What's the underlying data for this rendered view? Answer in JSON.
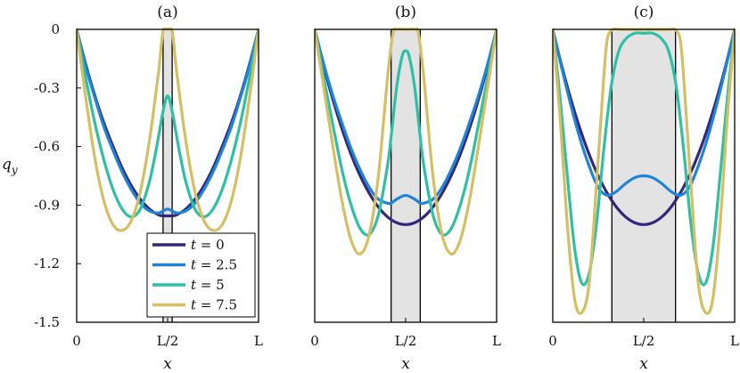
{
  "chart_data": {
    "type": "line",
    "ylabel": "q_y",
    "ylabel_main": "q",
    "ylabel_sub": "y",
    "xlabel": "x",
    "ylim": [
      -1.5,
      0
    ],
    "xlim": [
      0,
      1
    ],
    "yticks": [
      0,
      -0.3,
      -0.6,
      -0.9,
      -1.2,
      -1.5
    ],
    "ytick_labels": [
      "0",
      "-0.3",
      "-0.6",
      "-0.9",
      "-1.2",
      "-1.5"
    ],
    "xticks": [
      0,
      0.5,
      1
    ],
    "xtick_labels": [
      "0",
      "L/2",
      "L"
    ],
    "legend": {
      "location": "lower-right of panel (a)",
      "entries": [
        {
          "label": "t = 0",
          "var": "t",
          "eq": " = 0",
          "color": "#33277a"
        },
        {
          "label": "t = 2.5",
          "var": "t",
          "eq": " = 2.5",
          "color": "#1f84d6"
        },
        {
          "label": "t = 5",
          "var": "t",
          "eq": " = 5",
          "color": "#2ebfa5"
        },
        {
          "label": "t = 7.5",
          "var": "t",
          "eq": " = 7.5",
          "color": "#d6be62"
        }
      ]
    },
    "panels": [
      {
        "title": "(a)",
        "shaded_region": [
          0.475,
          0.525
        ],
        "series": [
          {
            "name": "t = 0",
            "color": "#33277a",
            "x": [
              0,
              0.05,
              0.1,
              0.15,
              0.2,
              0.25,
              0.3,
              0.35,
              0.4,
              0.45,
              0.475,
              0.5,
              0.525,
              0.55,
              0.6,
              0.65,
              0.7,
              0.75,
              0.8,
              0.85,
              0.9,
              0.95,
              1
            ],
            "y": [
              0,
              -0.18,
              -0.34,
              -0.48,
              -0.6,
              -0.71,
              -0.8,
              -0.87,
              -0.92,
              -0.95,
              -0.955,
              -0.955,
              -0.955,
              -0.95,
              -0.92,
              -0.87,
              -0.8,
              -0.71,
              -0.6,
              -0.48,
              -0.34,
              -0.18,
              0
            ]
          },
          {
            "name": "t = 2.5",
            "color": "#1f84d6",
            "x": [
              0,
              0.05,
              0.1,
              0.15,
              0.2,
              0.25,
              0.3,
              0.35,
              0.4,
              0.45,
              0.475,
              0.5,
              0.525,
              0.55,
              0.6,
              0.65,
              0.7,
              0.75,
              0.8,
              0.85,
              0.9,
              0.95,
              1
            ],
            "y": [
              0,
              -0.19,
              -0.35,
              -0.5,
              -0.62,
              -0.73,
              -0.82,
              -0.89,
              -0.93,
              -0.94,
              -0.93,
              -0.92,
              -0.93,
              -0.94,
              -0.93,
              -0.89,
              -0.82,
              -0.73,
              -0.62,
              -0.5,
              -0.35,
              -0.19,
              0
            ]
          },
          {
            "name": "t = 5",
            "color": "#2ebfa5",
            "x": [
              0,
              0.05,
              0.1,
              0.15,
              0.2,
              0.25,
              0.3,
              0.35,
              0.4,
              0.43,
              0.45,
              0.475,
              0.5,
              0.525,
              0.55,
              0.57,
              0.6,
              0.65,
              0.7,
              0.75,
              0.8,
              0.85,
              0.9,
              0.95,
              1
            ],
            "y": [
              0,
              -0.25,
              -0.48,
              -0.67,
              -0.82,
              -0.92,
              -0.96,
              -0.92,
              -0.78,
              -0.65,
              -0.55,
              -0.42,
              -0.34,
              -0.42,
              -0.55,
              -0.65,
              -0.78,
              -0.92,
              -0.96,
              -0.92,
              -0.82,
              -0.67,
              -0.48,
              -0.25,
              0
            ]
          },
          {
            "name": "t = 7.5",
            "color": "#d6be62",
            "x": [
              0,
              0.05,
              0.1,
              0.15,
              0.2,
              0.25,
              0.3,
              0.35,
              0.4,
              0.45,
              0.475,
              0.5,
              0.525,
              0.55,
              0.6,
              0.65,
              0.7,
              0.75,
              0.8,
              0.85,
              0.9,
              0.95,
              1
            ],
            "y": [
              0,
              -0.35,
              -0.66,
              -0.88,
              -1.0,
              -1.03,
              -0.98,
              -0.83,
              -0.57,
              -0.22,
              -0.01,
              0,
              -0.01,
              -0.22,
              -0.57,
              -0.83,
              -0.98,
              -1.03,
              -1.0,
              -0.88,
              -0.66,
              -0.35,
              0
            ]
          }
        ]
      },
      {
        "title": "(b)",
        "shaded_region": [
          0.42,
          0.58
        ],
        "series": [
          {
            "name": "t = 0",
            "color": "#33277a",
            "x": [
              0,
              0.05,
              0.1,
              0.15,
              0.2,
              0.25,
              0.3,
              0.35,
              0.4,
              0.45,
              0.5,
              0.55,
              0.6,
              0.65,
              0.7,
              0.75,
              0.8,
              0.85,
              0.9,
              0.95,
              1
            ],
            "y": [
              0,
              -0.19,
              -0.36,
              -0.51,
              -0.64,
              -0.75,
              -0.84,
              -0.91,
              -0.96,
              -0.99,
              -1.0,
              -0.99,
              -0.96,
              -0.91,
              -0.84,
              -0.75,
              -0.64,
              -0.51,
              -0.36,
              -0.19,
              0
            ]
          },
          {
            "name": "t = 2.5",
            "color": "#1f84d6",
            "x": [
              0,
              0.05,
              0.1,
              0.15,
              0.2,
              0.25,
              0.3,
              0.35,
              0.4,
              0.42,
              0.45,
              0.5,
              0.55,
              0.58,
              0.6,
              0.65,
              0.7,
              0.75,
              0.8,
              0.85,
              0.9,
              0.95,
              1
            ],
            "y": [
              0,
              -0.18,
              -0.34,
              -0.48,
              -0.61,
              -0.72,
              -0.81,
              -0.87,
              -0.89,
              -0.89,
              -0.87,
              -0.85,
              -0.87,
              -0.89,
              -0.89,
              -0.87,
              -0.81,
              -0.72,
              -0.61,
              -0.48,
              -0.34,
              -0.18,
              0
            ]
          },
          {
            "name": "t = 5",
            "color": "#2ebfa5",
            "x": [
              0,
              0.05,
              0.1,
              0.15,
              0.2,
              0.25,
              0.3,
              0.35,
              0.4,
              0.42,
              0.45,
              0.48,
              0.5,
              0.52,
              0.55,
              0.58,
              0.6,
              0.65,
              0.7,
              0.75,
              0.8,
              0.85,
              0.9,
              0.95,
              1
            ],
            "y": [
              0,
              -0.25,
              -0.49,
              -0.72,
              -0.9,
              -1.02,
              -1.05,
              -0.95,
              -0.7,
              -0.55,
              -0.3,
              -0.14,
              -0.11,
              -0.14,
              -0.3,
              -0.55,
              -0.7,
              -0.95,
              -1.05,
              -1.02,
              -0.9,
              -0.72,
              -0.49,
              -0.25,
              0
            ]
          },
          {
            "name": "t = 7.5",
            "color": "#d6be62",
            "x": [
              0,
              0.05,
              0.1,
              0.15,
              0.2,
              0.25,
              0.3,
              0.35,
              0.4,
              0.43,
              0.45,
              0.5,
              0.55,
              0.57,
              0.6,
              0.65,
              0.7,
              0.75,
              0.8,
              0.85,
              0.9,
              0.95,
              1
            ],
            "y": [
              0,
              -0.3,
              -0.6,
              -0.88,
              -1.08,
              -1.15,
              -1.05,
              -0.75,
              -0.25,
              -0.02,
              0,
              0,
              0,
              -0.02,
              -0.25,
              -0.75,
              -1.05,
              -1.15,
              -1.08,
              -0.88,
              -0.6,
              -0.3,
              0
            ]
          }
        ]
      },
      {
        "title": "(c)",
        "shaded_region": [
          0.325,
          0.675
        ],
        "series": [
          {
            "name": "t = 0",
            "color": "#33277a",
            "x": [
              0,
              0.05,
              0.1,
              0.15,
              0.2,
              0.25,
              0.3,
              0.35,
              0.4,
              0.45,
              0.5,
              0.55,
              0.6,
              0.65,
              0.7,
              0.75,
              0.8,
              0.85,
              0.9,
              0.95,
              1
            ],
            "y": [
              0,
              -0.19,
              -0.36,
              -0.51,
              -0.64,
              -0.75,
              -0.84,
              -0.91,
              -0.96,
              -0.99,
              -1.0,
              -0.99,
              -0.96,
              -0.91,
              -0.84,
              -0.75,
              -0.64,
              -0.51,
              -0.36,
              -0.19,
              0
            ]
          },
          {
            "name": "t = 2.5",
            "color": "#1f84d6",
            "x": [
              0,
              0.05,
              0.1,
              0.15,
              0.2,
              0.25,
              0.3,
              0.35,
              0.4,
              0.45,
              0.5,
              0.55,
              0.6,
              0.65,
              0.7,
              0.75,
              0.8,
              0.85,
              0.9,
              0.95,
              1
            ],
            "y": [
              0,
              -0.2,
              -0.39,
              -0.56,
              -0.7,
              -0.81,
              -0.85,
              -0.83,
              -0.79,
              -0.76,
              -0.75,
              -0.76,
              -0.79,
              -0.83,
              -0.85,
              -0.81,
              -0.7,
              -0.56,
              -0.39,
              -0.2,
              0
            ]
          },
          {
            "name": "t = 5",
            "color": "#2ebfa5",
            "x": [
              0,
              0.04,
              0.08,
              0.12,
              0.16,
              0.2,
              0.24,
              0.28,
              0.32,
              0.36,
              0.4,
              0.45,
              0.5,
              0.55,
              0.6,
              0.64,
              0.68,
              0.72,
              0.76,
              0.8,
              0.84,
              0.88,
              0.92,
              0.96,
              1
            ],
            "y": [
              0,
              -0.35,
              -0.75,
              -1.12,
              -1.3,
              -1.25,
              -1.0,
              -0.62,
              -0.3,
              -0.12,
              -0.05,
              -0.02,
              -0.02,
              -0.02,
              -0.05,
              -0.12,
              -0.3,
              -0.62,
              -1.0,
              -1.25,
              -1.3,
              -1.12,
              -0.75,
              -0.35,
              0
            ]
          },
          {
            "name": "t = 7.5",
            "color": "#d6be62",
            "x": [
              0,
              0.04,
              0.08,
              0.12,
              0.16,
              0.2,
              0.24,
              0.28,
              0.3,
              0.33,
              0.36,
              0.4,
              0.5,
              0.6,
              0.64,
              0.67,
              0.7,
              0.72,
              0.76,
              0.8,
              0.84,
              0.88,
              0.92,
              0.96,
              1
            ],
            "y": [
              0,
              -0.45,
              -1.0,
              -1.38,
              -1.45,
              -1.3,
              -0.8,
              -0.25,
              -0.05,
              0,
              0,
              0,
              0,
              0,
              0,
              0,
              -0.05,
              -0.25,
              -0.8,
              -1.3,
              -1.45,
              -1.38,
              -1.0,
              -0.45,
              0
            ]
          }
        ]
      }
    ]
  }
}
